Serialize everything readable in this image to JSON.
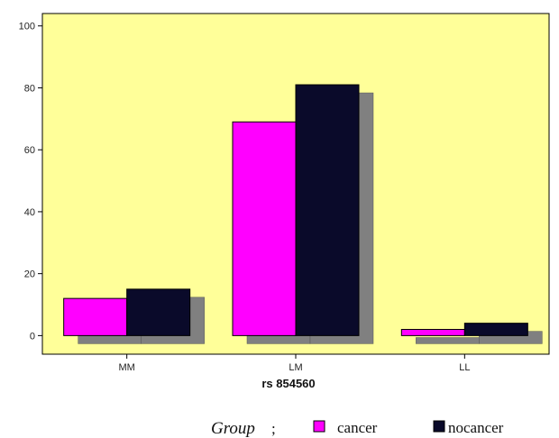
{
  "chart_data": {
    "type": "bar",
    "categories": [
      "MM",
      "LM",
      "LL"
    ],
    "series": [
      {
        "name": "cancer",
        "values": [
          12,
          69,
          2
        ],
        "color": "#ff00ff"
      },
      {
        "name": "nocancer",
        "values": [
          15,
          81,
          4
        ],
        "color": "#0a0a2a"
      }
    ],
    "xlabel": "rs 854560",
    "ylabel": "",
    "ylim": [
      -6,
      104
    ],
    "yticks": [
      0,
      20,
      40,
      60,
      80,
      100
    ],
    "grid": false,
    "plot_background": "#ffff99",
    "shadow_color": "#808080",
    "legend": {
      "title": "Group",
      "separator": ";",
      "placement": "bottom-right"
    }
  }
}
